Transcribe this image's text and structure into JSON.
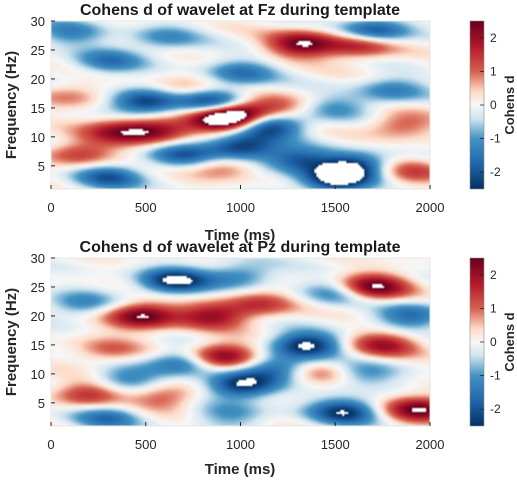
{
  "chart_data": [
    {
      "type": "heatmap",
      "title": "Cohens d of wavelet at Fz during template",
      "xlabel": "Time (ms)",
      "ylabel": "Frequency (Hz)",
      "xlim": [
        0,
        2000
      ],
      "ylim": [
        1,
        30
      ],
      "xticks": [
        0,
        500,
        1000,
        1500,
        2000
      ],
      "yticks": [
        5,
        10,
        15,
        20,
        25,
        30
      ],
      "colorbar": {
        "label": "Cohens d",
        "clim": [
          -2.5,
          2.5
        ],
        "ticks": [
          -2,
          -1,
          0,
          1,
          2
        ],
        "colormap": "blue-white-red"
      },
      "grid": false,
      "features": [
        {
          "t": 550,
          "f": 11,
          "d": 2.0
        },
        {
          "t": 350,
          "f": 11,
          "d": 1.7
        },
        {
          "t": 900,
          "f": 13,
          "d": 2.5
        },
        {
          "t": 980,
          "f": 14,
          "d": 2.4
        },
        {
          "t": 700,
          "f": 18,
          "d": 1.0
        },
        {
          "t": 1330,
          "f": 26,
          "d": 2.4
        },
        {
          "t": 1640,
          "f": 26,
          "d": 2.2
        },
        {
          "t": 1850,
          "f": 12,
          "d": 1.2
        },
        {
          "t": 1200,
          "f": 15,
          "d": 1.1
        },
        {
          "t": 150,
          "f": 7,
          "d": 1.4
        },
        {
          "t": 900,
          "f": 5,
          "d": 1.3
        },
        {
          "t": 1900,
          "f": 4,
          "d": 1.2
        },
        {
          "t": 100,
          "f": 17,
          "d": 0.9
        },
        {
          "t": 500,
          "f": 16,
          "d": -2.5
        },
        {
          "t": 850,
          "f": 16,
          "d": -2.5
        },
        {
          "t": 1150,
          "f": 12,
          "d": -2.6
        },
        {
          "t": 1000,
          "f": 8,
          "d": -2.5
        },
        {
          "t": 700,
          "f": 7,
          "d": -1.8
        },
        {
          "t": 1300,
          "f": 6,
          "d": -1.8
        },
        {
          "t": 1600,
          "f": 5,
          "d": -2.3
        },
        {
          "t": 1500,
          "f": 2.5,
          "d": -2.6
        },
        {
          "t": 300,
          "f": 3,
          "d": -1.8
        },
        {
          "t": 300,
          "f": 23,
          "d": -1.4
        },
        {
          "t": 1000,
          "f": 21,
          "d": -1.5
        },
        {
          "t": 1800,
          "f": 18,
          "d": -1.3
        },
        {
          "t": 100,
          "f": 28,
          "d": -1.2
        },
        {
          "t": 1500,
          "f": 15,
          "d": -1.0
        },
        {
          "t": 600,
          "f": 27,
          "d": -1.1
        },
        {
          "t": 1700,
          "f": 28,
          "d": -2.5
        }
      ]
    },
    {
      "type": "heatmap",
      "title": "Cohens d of wavelet at Pz during template",
      "xlabel": "Time (ms)",
      "ylabel": "Frequency (Hz)",
      "xlim": [
        0,
        2000
      ],
      "ylim": [
        1,
        30
      ],
      "xticks": [
        0,
        500,
        1000,
        1500,
        2000
      ],
      "yticks": [
        5,
        10,
        15,
        20,
        25,
        30
      ],
      "colorbar": {
        "label": "Cohens d",
        "clim": [
          -2.5,
          2.5
        ],
        "ticks": [
          -2,
          -1,
          0,
          1,
          2
        ],
        "colormap": "blue-white-red"
      },
      "grid": false,
      "features": [
        {
          "t": 480,
          "f": 20,
          "d": 2.6
        },
        {
          "t": 900,
          "f": 13,
          "d": 2.6
        },
        {
          "t": 850,
          "f": 20,
          "d": 1.9
        },
        {
          "t": 1700,
          "f": 25,
          "d": 2.6
        },
        {
          "t": 1750,
          "f": 15,
          "d": 1.8
        },
        {
          "t": 1100,
          "f": 22,
          "d": 1.4
        },
        {
          "t": 200,
          "f": 6.5,
          "d": 1.6
        },
        {
          "t": 600,
          "f": 6,
          "d": 1.3
        },
        {
          "t": 1950,
          "f": 4,
          "d": 2.5
        },
        {
          "t": 300,
          "f": 14,
          "d": 1.0
        },
        {
          "t": 1400,
          "f": 10,
          "d": 1.0
        },
        {
          "t": 650,
          "f": 26,
          "d": -2.6
        },
        {
          "t": 1350,
          "f": 15,
          "d": -2.6
        },
        {
          "t": 1000,
          "f": 8,
          "d": -2.6
        },
        {
          "t": 700,
          "f": 12,
          "d": -1.8
        },
        {
          "t": 1200,
          "f": 11,
          "d": -1.7
        },
        {
          "t": 1550,
          "f": 3.5,
          "d": -2.4
        },
        {
          "t": 400,
          "f": 9,
          "d": -1.3
        },
        {
          "t": 1900,
          "f": 20,
          "d": -1.6
        },
        {
          "t": 1500,
          "f": 24,
          "d": -1.2
        },
        {
          "t": 150,
          "f": 22,
          "d": -1.2
        },
        {
          "t": 1000,
          "f": 27,
          "d": -1.3
        },
        {
          "t": 1650,
          "f": 10,
          "d": -1.1
        },
        {
          "t": 300,
          "f": 2.5,
          "d": -1.5
        },
        {
          "t": 950,
          "f": 3,
          "d": -1.0
        }
      ]
    }
  ]
}
